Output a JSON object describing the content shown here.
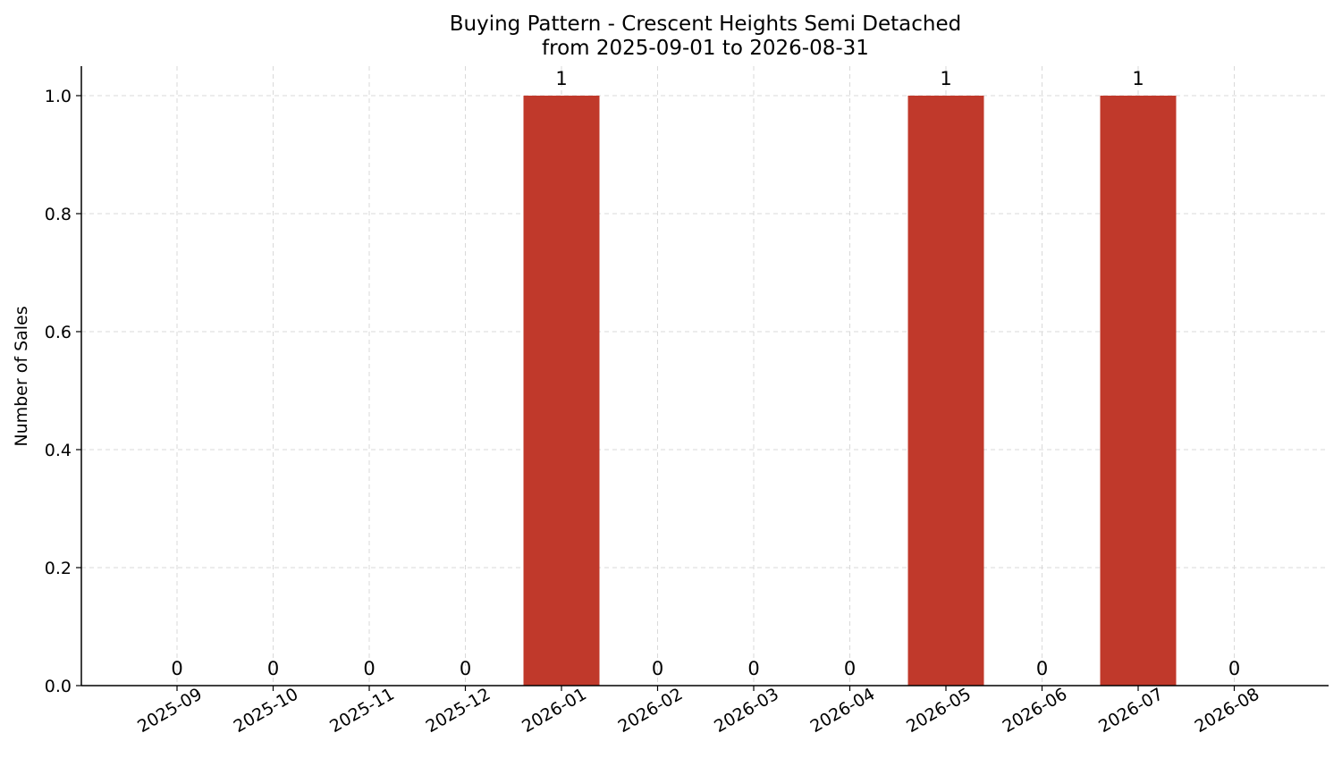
{
  "chart_data": {
    "type": "bar",
    "title": "Buying Pattern - Crescent Heights Semi Detached",
    "subtitle": "from 2025-09-01 to 2026-08-31",
    "xlabel": "",
    "ylabel": "Number of Sales",
    "categories": [
      "2025-09",
      "2025-10",
      "2025-11",
      "2025-12",
      "2026-01",
      "2026-02",
      "2026-03",
      "2026-04",
      "2026-05",
      "2026-06",
      "2026-07",
      "2026-08"
    ],
    "values": [
      0,
      0,
      0,
      0,
      1,
      0,
      0,
      0,
      1,
      0,
      1,
      0
    ],
    "data_labels": [
      "0",
      "0",
      "0",
      "0",
      "1",
      "0",
      "0",
      "0",
      "1",
      "0",
      "1",
      "0"
    ],
    "ylim": [
      0,
      1.05
    ],
    "yticks": [
      "0.0",
      "0.2",
      "0.4",
      "0.6",
      "0.8",
      "1.0"
    ],
    "grid": true,
    "legend": "none",
    "bar_color": "#c0392b",
    "grid_color": "#d9d9d9",
    "axis_color": "#000000"
  }
}
